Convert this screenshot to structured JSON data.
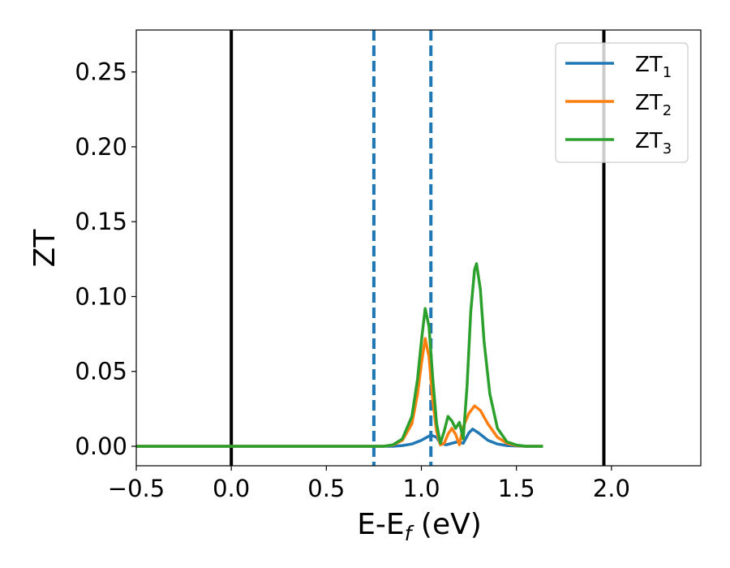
{
  "chart_data": {
    "type": "line",
    "title": "",
    "xlabel": "E-E",
    "xlabel_sub": "f",
    "xlabel_unit": " (eV)",
    "ylabel": "ZT",
    "xlim": [
      -0.5,
      2.47
    ],
    "ylim": [
      -0.013,
      0.278
    ],
    "grid": false,
    "legend_position": "top-right",
    "xticks": [
      {
        "value": -0.5,
        "label": "−0.5"
      },
      {
        "value": 0.0,
        "label": "0.0"
      },
      {
        "value": 0.5,
        "label": "0.5"
      },
      {
        "value": 1.0,
        "label": "1.0"
      },
      {
        "value": 1.5,
        "label": "1.5"
      },
      {
        "value": 2.0,
        "label": "2.0"
      }
    ],
    "yticks": [
      {
        "value": 0.0,
        "label": "0.00"
      },
      {
        "value": 0.05,
        "label": "0.05"
      },
      {
        "value": 0.1,
        "label": "0.10"
      },
      {
        "value": 0.15,
        "label": "0.15"
      },
      {
        "value": 0.2,
        "label": "0.20"
      },
      {
        "value": 0.25,
        "label": "0.25"
      }
    ],
    "vlines": [
      {
        "x": 0.0,
        "color": "#000000",
        "style": "solid"
      },
      {
        "x": 1.96,
        "color": "#000000",
        "style": "solid"
      },
      {
        "x": 0.75,
        "color": "#1f77b4",
        "style": "dashed"
      },
      {
        "x": 1.05,
        "color": "#1f77b4",
        "style": "dashed"
      }
    ],
    "series": [
      {
        "name": "ZT",
        "name_sub": "1",
        "color": "#1f77b4",
        "x": [
          -0.5,
          0.5,
          0.85,
          0.9,
          0.95,
          1.0,
          1.05,
          1.08,
          1.1,
          1.13,
          1.16,
          1.19,
          1.22,
          1.25,
          1.27,
          1.3,
          1.35,
          1.4,
          1.45,
          1.5,
          1.55,
          1.64
        ],
        "y": [
          0.0,
          0.0,
          0.0,
          0.0005,
          0.0015,
          0.004,
          0.0075,
          0.006,
          0.002,
          0.001,
          0.002,
          0.003,
          0.002,
          0.009,
          0.0115,
          0.009,
          0.004,
          0.0015,
          0.0005,
          0.0002,
          0.0,
          0.0
        ]
      },
      {
        "name": "ZT",
        "name_sub": "2",
        "color": "#ff7f0e",
        "x": [
          -0.5,
          0.5,
          0.8,
          0.85,
          0.9,
          0.95,
          0.98,
          1.0,
          1.02,
          1.04,
          1.06,
          1.08,
          1.1,
          1.12,
          1.14,
          1.16,
          1.18,
          1.2,
          1.22,
          1.25,
          1.28,
          1.31,
          1.35,
          1.4,
          1.45,
          1.5,
          1.55,
          1.64
        ],
        "y": [
          0.0,
          0.0,
          0.0,
          0.0008,
          0.004,
          0.015,
          0.035,
          0.055,
          0.072,
          0.06,
          0.03,
          0.01,
          0.001,
          0.002,
          0.008,
          0.012,
          0.008,
          0.001,
          0.013,
          0.022,
          0.027,
          0.024,
          0.015,
          0.006,
          0.002,
          0.0005,
          0.0,
          0.0
        ]
      },
      {
        "name": "ZT",
        "name_sub": "3",
        "color": "#2ca02c",
        "x": [
          -0.5,
          0.5,
          0.8,
          0.85,
          0.9,
          0.95,
          0.98,
          1.0,
          1.02,
          1.04,
          1.06,
          1.08,
          1.1,
          1.12,
          1.14,
          1.16,
          1.18,
          1.2,
          1.22,
          1.24,
          1.26,
          1.28,
          1.29,
          1.31,
          1.33,
          1.36,
          1.4,
          1.45,
          1.5,
          1.55,
          1.64
        ],
        "y": [
          0.0,
          0.0,
          0.0,
          0.001,
          0.005,
          0.02,
          0.045,
          0.07,
          0.092,
          0.08,
          0.045,
          0.015,
          0.002,
          0.01,
          0.02,
          0.017,
          0.012,
          0.016,
          0.005,
          0.04,
          0.09,
          0.118,
          0.122,
          0.105,
          0.07,
          0.035,
          0.012,
          0.003,
          0.0008,
          0.0,
          0.0
        ]
      }
    ]
  }
}
